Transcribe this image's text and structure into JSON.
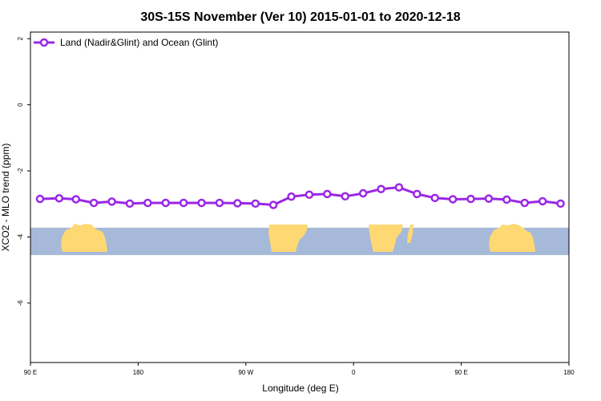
{
  "chart_data": {
    "type": "line",
    "title": "30S-15S November (Ver 10)   2015-01-01 to 2020-12-18",
    "xlabel": "Longitude (deg E)",
    "ylabel": "XCO2 - MLO trend (ppm)",
    "x_ticks": [
      {
        "value": 90,
        "label": "90 E"
      },
      {
        "value": 180,
        "label": "180"
      },
      {
        "value": 270,
        "label": "90 W"
      },
      {
        "value": 360,
        "label": "0"
      },
      {
        "value": 450,
        "label": "90 E"
      },
      {
        "value": 540,
        "label": "180"
      }
    ],
    "y_ticks": [
      {
        "value": 2,
        "label": "2"
      },
      {
        "value": 0,
        "label": "0"
      },
      {
        "value": -2,
        "label": "-2"
      },
      {
        "value": -4,
        "label": "-4"
      },
      {
        "value": -6,
        "label": "-6"
      }
    ],
    "xlim": [
      90,
      540
    ],
    "ylim": [
      -7.8,
      2.2
    ],
    "grid": false,
    "legend_position": "top-left",
    "map_band": {
      "ymin": -4.55,
      "ymax": -3.72,
      "ocean_color": "#a6b9d8",
      "land_color": "#fed872"
    },
    "series": [
      {
        "name": "Land (Nadir&Glint) and Ocean (Glint)",
        "color": "#9a27e6",
        "x": [
          98,
          114,
          128,
          143,
          158,
          173,
          188,
          203,
          218,
          233,
          248,
          263,
          278,
          293,
          308,
          323,
          338,
          353,
          368,
          383,
          398,
          413,
          428,
          443,
          458,
          473,
          488,
          503,
          518,
          533
        ],
        "y": [
          -2.85,
          -2.83,
          -2.86,
          -2.97,
          -2.93,
          -2.99,
          -2.97,
          -2.97,
          -2.97,
          -2.97,
          -2.97,
          -2.98,
          -2.99,
          -3.03,
          -2.78,
          -2.72,
          -2.7,
          -2.77,
          -2.68,
          -2.55,
          -2.5,
          -2.7,
          -2.82,
          -2.86,
          -2.85,
          -2.84,
          -2.87,
          -2.97,
          -2.92,
          -2.99
        ]
      }
    ]
  }
}
